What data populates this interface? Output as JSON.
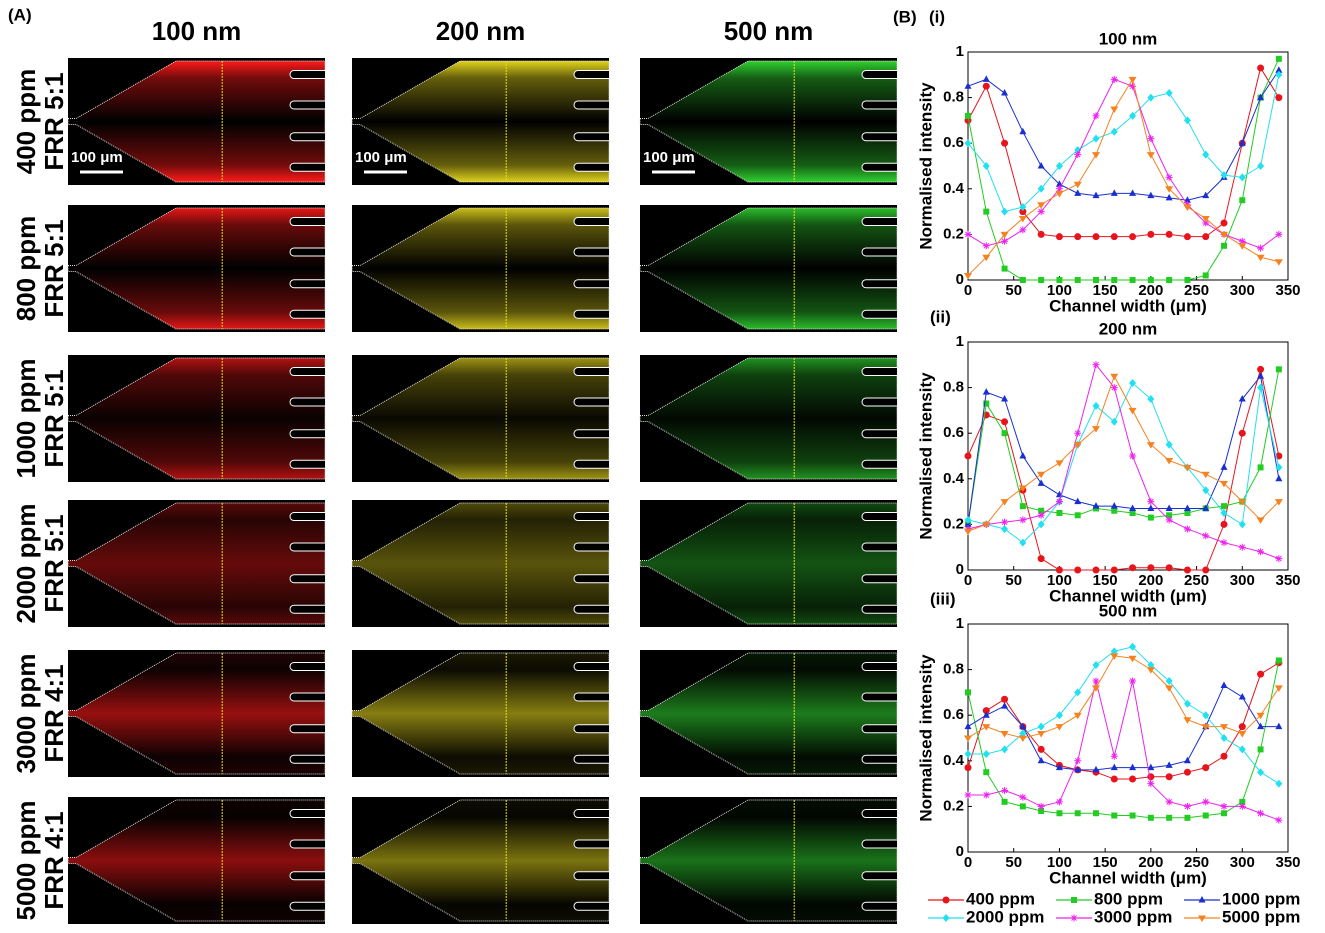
{
  "panel_a": {
    "label": "(A)",
    "columns": [
      "100 nm",
      "200 nm",
      "500 nm"
    ],
    "rows": [
      {
        "ppm": "400 ppm",
        "frr": "FRR 5:1"
      },
      {
        "ppm": "800 ppm",
        "frr": "FRR 5:1"
      },
      {
        "ppm": "1000 ppm",
        "frr": "FRR 5:1"
      },
      {
        "ppm": "2000 ppm",
        "frr": "FRR 5:1"
      },
      {
        "ppm": "3000 ppm",
        "frr": "FRR 4:1"
      },
      {
        "ppm": "5000 ppm",
        "frr": "FRR 4:1"
      }
    ],
    "scale_bar": "100 μm"
  },
  "panel_b": {
    "label": "(B)"
  },
  "chart_data": [
    {
      "type": "line",
      "panel": "(i)",
      "title": "100 nm",
      "x_label": "Channel width (μm)",
      "y_label": "Normalised intensity",
      "x": [
        0,
        20,
        40,
        60,
        80,
        100,
        120,
        140,
        160,
        180,
        200,
        220,
        240,
        260,
        280,
        300,
        320,
        340
      ],
      "xlim": [
        0,
        350
      ],
      "xticks": [
        0,
        50,
        100,
        150,
        200,
        250,
        300,
        350
      ],
      "ylim": [
        0,
        1
      ],
      "yticks": [
        0,
        0.2,
        0.4,
        0.6,
        0.8,
        1
      ],
      "series": [
        {
          "name": "400 ppm",
          "color": "#e8141c",
          "marker": "circle",
          "values": [
            0.7,
            0.85,
            0.6,
            0.3,
            0.2,
            0.19,
            0.19,
            0.19,
            0.19,
            0.19,
            0.2,
            0.2,
            0.19,
            0.19,
            0.25,
            0.6,
            0.93,
            0.8
          ]
        },
        {
          "name": "800 ppm",
          "color": "#22cc22",
          "marker": "square",
          "values": [
            0.72,
            0.3,
            0.05,
            0,
            0,
            0,
            0,
            0,
            0,
            0,
            0,
            0,
            0,
            0.02,
            0.15,
            0.35,
            0.8,
            0.97
          ]
        },
        {
          "name": "1000 ppm",
          "color": "#1a2fd0",
          "marker": "triangle",
          "values": [
            0.85,
            0.88,
            0.82,
            0.65,
            0.5,
            0.42,
            0.38,
            0.37,
            0.38,
            0.38,
            0.37,
            0.36,
            0.35,
            0.37,
            0.45,
            0.6,
            0.8,
            0.92
          ]
        },
        {
          "name": "2000 ppm",
          "color": "#22e0f0",
          "marker": "diamond",
          "values": [
            0.6,
            0.5,
            0.3,
            0.32,
            0.4,
            0.5,
            0.57,
            0.62,
            0.65,
            0.72,
            0.8,
            0.82,
            0.7,
            0.55,
            0.46,
            0.45,
            0.5,
            0.9
          ]
        },
        {
          "name": "3000 ppm",
          "color": "#ee22ee",
          "marker": "star",
          "values": [
            0.2,
            0.15,
            0.17,
            0.22,
            0.3,
            0.4,
            0.55,
            0.72,
            0.88,
            0.85,
            0.62,
            0.45,
            0.33,
            0.25,
            0.2,
            0.17,
            0.14,
            0.2
          ]
        },
        {
          "name": "5000 ppm",
          "color": "#f58220",
          "marker": "triangle-down",
          "values": [
            0.02,
            0.1,
            0.2,
            0.27,
            0.33,
            0.38,
            0.42,
            0.55,
            0.75,
            0.88,
            0.55,
            0.4,
            0.32,
            0.27,
            0.2,
            0.15,
            0.1,
            0.08
          ]
        }
      ]
    },
    {
      "type": "line",
      "panel": "(ii)",
      "title": "200 nm",
      "x_label": "Channel width (μm)",
      "y_label": "Normalised intensity",
      "x": [
        0,
        20,
        40,
        60,
        80,
        100,
        120,
        140,
        160,
        180,
        200,
        220,
        240,
        260,
        280,
        300,
        320,
        340
      ],
      "xlim": [
        0,
        350
      ],
      "xticks": [
        0,
        50,
        100,
        150,
        200,
        250,
        300,
        350
      ],
      "ylim": [
        0,
        1
      ],
      "yticks": [
        0,
        0.2,
        0.4,
        0.6,
        0.8,
        1
      ],
      "series": [
        {
          "color": "#e8141c",
          "marker": "circle",
          "values": [
            0.5,
            0.68,
            0.65,
            0.35,
            0.05,
            0,
            0,
            0,
            0,
            0.01,
            0.01,
            0.01,
            0,
            0,
            0.2,
            0.6,
            0.88,
            0.5
          ]
        },
        {
          "color": "#22cc22",
          "marker": "square",
          "values": [
            0.2,
            0.73,
            0.6,
            0.28,
            0.26,
            0.25,
            0.24,
            0.27,
            0.26,
            0.25,
            0.23,
            0.24,
            0.25,
            0.27,
            0.28,
            0.3,
            0.45,
            0.88
          ]
        },
        {
          "color": "#1a2fd0",
          "marker": "triangle",
          "values": [
            0.2,
            0.78,
            0.75,
            0.5,
            0.38,
            0.33,
            0.3,
            0.28,
            0.28,
            0.27,
            0.27,
            0.27,
            0.27,
            0.27,
            0.45,
            0.75,
            0.85,
            0.4
          ]
        },
        {
          "color": "#22e0f0",
          "marker": "diamond",
          "values": [
            0.22,
            0.2,
            0.18,
            0.12,
            0.2,
            0.3,
            0.55,
            0.72,
            0.65,
            0.82,
            0.75,
            0.55,
            0.45,
            0.35,
            0.25,
            0.2,
            0.8,
            0.45
          ]
        },
        {
          "color": "#ee22ee",
          "marker": "star",
          "values": [
            0.18,
            0.2,
            0.21,
            0.22,
            0.24,
            0.3,
            0.6,
            0.9,
            0.8,
            0.5,
            0.3,
            0.22,
            0.18,
            0.15,
            0.12,
            0.1,
            0.08,
            0.05
          ]
        },
        {
          "color": "#f58220",
          "marker": "triangle-down",
          "values": [
            0.17,
            0.2,
            0.3,
            0.36,
            0.42,
            0.47,
            0.55,
            0.62,
            0.85,
            0.7,
            0.55,
            0.48,
            0.45,
            0.42,
            0.38,
            0.3,
            0.22,
            0.3
          ]
        }
      ]
    },
    {
      "type": "line",
      "panel": "(iii)",
      "title": "500 nm",
      "x_label": "Channel width (μm)",
      "y_label": "Normalised intensity",
      "x": [
        0,
        20,
        40,
        60,
        80,
        100,
        120,
        140,
        160,
        180,
        200,
        220,
        240,
        260,
        280,
        300,
        320,
        340
      ],
      "xlim": [
        0,
        350
      ],
      "xticks": [
        0,
        50,
        100,
        150,
        200,
        250,
        300,
        350
      ],
      "ylim": [
        0,
        1
      ],
      "yticks": [
        0,
        0.2,
        0.4,
        0.6,
        0.8,
        1
      ],
      "series": [
        {
          "color": "#e8141c",
          "marker": "circle",
          "values": [
            0.37,
            0.62,
            0.67,
            0.55,
            0.45,
            0.38,
            0.36,
            0.35,
            0.32,
            0.32,
            0.33,
            0.33,
            0.35,
            0.37,
            0.42,
            0.55,
            0.78,
            0.83
          ]
        },
        {
          "color": "#22cc22",
          "marker": "square",
          "values": [
            0.7,
            0.35,
            0.22,
            0.2,
            0.18,
            0.17,
            0.17,
            0.17,
            0.16,
            0.16,
            0.15,
            0.15,
            0.15,
            0.16,
            0.17,
            0.22,
            0.45,
            0.84
          ]
        },
        {
          "color": "#1a2fd0",
          "marker": "triangle",
          "values": [
            0.55,
            0.6,
            0.64,
            0.55,
            0.4,
            0.37,
            0.36,
            0.36,
            0.37,
            0.37,
            0.37,
            0.38,
            0.4,
            0.55,
            0.73,
            0.68,
            0.55,
            0.55
          ]
        },
        {
          "color": "#22e0f0",
          "marker": "diamond",
          "values": [
            0.43,
            0.43,
            0.45,
            0.52,
            0.55,
            0.6,
            0.7,
            0.82,
            0.88,
            0.9,
            0.82,
            0.75,
            0.65,
            0.6,
            0.5,
            0.45,
            0.35,
            0.3
          ]
        },
        {
          "color": "#ee22ee",
          "marker": "star",
          "values": [
            0.25,
            0.25,
            0.27,
            0.24,
            0.2,
            0.22,
            0.4,
            0.75,
            0.42,
            0.75,
            0.3,
            0.22,
            0.2,
            0.22,
            0.2,
            0.2,
            0.17,
            0.14
          ]
        },
        {
          "color": "#f58220",
          "marker": "triangle-down",
          "values": [
            0.5,
            0.55,
            0.52,
            0.5,
            0.52,
            0.55,
            0.6,
            0.72,
            0.86,
            0.85,
            0.8,
            0.72,
            0.58,
            0.55,
            0.55,
            0.52,
            0.6,
            0.72
          ]
        }
      ]
    }
  ]
}
